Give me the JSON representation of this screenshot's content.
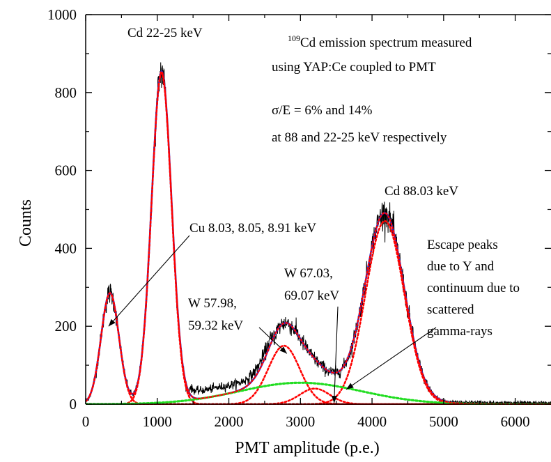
{
  "chart_data": {
    "type": "line",
    "xlabel": "PMT amplitude (p.e.)",
    "ylabel": "Counts",
    "xlim": [
      0,
      6500
    ],
    "ylim": [
      0,
      1000
    ],
    "xticks": [
      0,
      1000,
      2000,
      3000,
      4000,
      5000,
      6000
    ],
    "xtick_labels": [
      "0",
      "1000",
      "2000",
      "3000",
      "4000",
      "5000",
      "6000"
    ],
    "yticks": [
      0,
      200,
      400,
      600,
      800,
      1000
    ],
    "ytick_labels": [
      "0",
      "200",
      "400",
      "600",
      "800",
      "1000"
    ],
    "text_block": {
      "line1_super": "109",
      "line1_rest": "Cd emission spectrum measured",
      "line2": "using YAP:Ce coupled to PMT",
      "line3": "σ/E = 6% and 14%",
      "line4": "at 88 and 22-25 keV respectively"
    },
    "annotations": [
      {
        "id": "cd22",
        "lines": [
          "Cd 22-25 keV"
        ]
      },
      {
        "id": "cd88",
        "lines": [
          "Cd 88.03 keV"
        ]
      },
      {
        "id": "cu",
        "lines": [
          "Cu 8.03, 8.05, 8.91 keV"
        ],
        "arrow_to": [
          320,
          200
        ]
      },
      {
        "id": "w57",
        "lines": [
          "W 57.98,",
          "59.32 keV"
        ],
        "arrow_to": [
          2810,
          130
        ]
      },
      {
        "id": "w67",
        "lines": [
          "W 67.03,",
          "69.07 keV"
        ],
        "arrow_to": [
          3470,
          3
        ]
      },
      {
        "id": "escape",
        "lines": [
          "Escape peaks",
          "due to Y and",
          "continuum due to",
          "scattered",
          "gamma-rays"
        ],
        "arrow_to": [
          3640,
          38
        ]
      }
    ],
    "components": [
      {
        "id": "cu-peak",
        "type": "gaussian",
        "color": "#ff0000",
        "style": "dotted",
        "amp": 285,
        "mu": 340,
        "sigma": 125
      },
      {
        "id": "cd22-peak",
        "type": "gaussian",
        "color": "#ff0000",
        "style": "dotted",
        "amp": 850,
        "mu": 1060,
        "sigma": 140
      },
      {
        "id": "w57-peak",
        "type": "gaussian",
        "color": "#ff0000",
        "style": "dotted",
        "amp": 150,
        "mu": 2770,
        "sigma": 220
      },
      {
        "id": "w67-peak",
        "type": "gaussian",
        "color": "#ff0000",
        "style": "dotted",
        "amp": 40,
        "mu": 3200,
        "sigma": 210
      },
      {
        "id": "cd88-peak",
        "type": "gaussian",
        "color": "#ff0000",
        "style": "dotted",
        "amp": 470,
        "mu": 4180,
        "sigma": 270
      },
      {
        "id": "continuum",
        "type": "gaussian",
        "color": "#22dd22",
        "style": "dotted",
        "amp": 55,
        "mu": 3000,
        "sigma": 850
      }
    ],
    "series": [
      {
        "id": "measured",
        "color": "#000000",
        "style": "noisy"
      },
      {
        "id": "fit",
        "color": "#1a2cd8",
        "style": "solid"
      },
      {
        "id": "fit-sum",
        "color": "#ff0000",
        "style": "dotted"
      }
    ]
  }
}
